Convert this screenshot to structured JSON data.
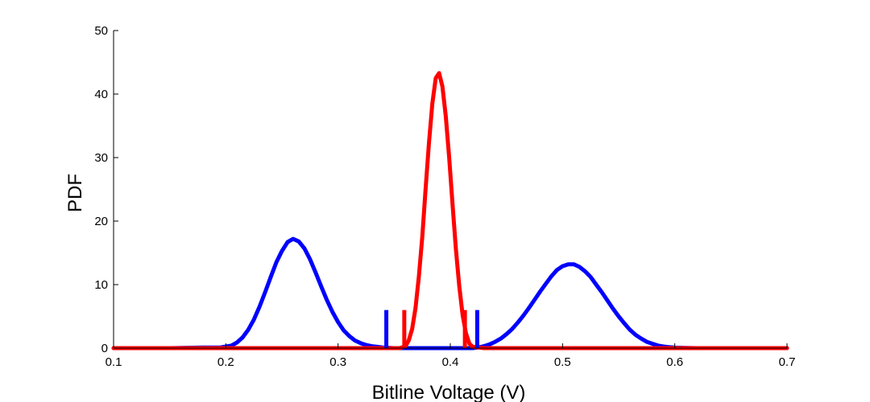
{
  "chart_data": {
    "type": "line",
    "xlabel": "Bitline Voltage (V)",
    "ylabel": "PDF",
    "xlim": [
      0.1,
      0.7
    ],
    "ylim": [
      0,
      50
    ],
    "xticks": [
      0.1,
      0.2,
      0.3,
      0.4,
      0.5,
      0.6,
      0.7
    ],
    "xtick_labels": [
      "0.1",
      "0.2",
      "0.3",
      "0.4",
      "0.5",
      "0.6",
      "0.7"
    ],
    "yticks": [
      0,
      10,
      20,
      30,
      40,
      50
    ],
    "ytick_labels": [
      "0",
      "10",
      "20",
      "30",
      "40",
      "50"
    ],
    "grid": false,
    "series": [
      {
        "color": "#0000ff",
        "x": [
          0.1,
          0.12,
          0.15,
          0.18,
          0.195,
          0.205,
          0.21,
          0.215,
          0.22,
          0.225,
          0.23,
          0.235,
          0.24,
          0.245,
          0.25,
          0.255,
          0.26,
          0.265,
          0.27,
          0.275,
          0.28,
          0.285,
          0.29,
          0.295,
          0.3,
          0.305,
          0.31,
          0.315,
          0.32,
          0.325,
          0.33,
          0.335,
          0.34,
          0.345,
          0.35,
          0.36,
          0.37,
          0.38,
          0.39,
          0.4,
          0.41,
          0.42,
          0.425,
          0.43,
          0.435,
          0.44,
          0.445,
          0.45,
          0.455,
          0.46,
          0.465,
          0.47,
          0.475,
          0.48,
          0.485,
          0.49,
          0.495,
          0.5,
          0.505,
          0.51,
          0.515,
          0.52,
          0.525,
          0.53,
          0.535,
          0.54,
          0.545,
          0.55,
          0.555,
          0.56,
          0.565,
          0.57,
          0.575,
          0.58,
          0.585,
          0.59,
          0.595,
          0.6,
          0.61,
          0.62,
          0.65,
          0.7
        ],
        "y": [
          0.0,
          0.0,
          0.0,
          0.1,
          0.1,
          0.4,
          0.9,
          1.7,
          2.9,
          4.5,
          6.5,
          8.8,
          11.2,
          13.5,
          15.3,
          16.7,
          17.2,
          16.8,
          15.7,
          14.0,
          11.9,
          9.7,
          7.6,
          5.7,
          4.1,
          2.8,
          1.9,
          1.2,
          0.8,
          0.5,
          0.3,
          0.2,
          0.1,
          0.05,
          0.0,
          0.0,
          0.0,
          0.0,
          0.0,
          0.0,
          0.0,
          0.0,
          0.1,
          0.3,
          0.6,
          1.0,
          1.5,
          2.2,
          3.0,
          4.0,
          5.1,
          6.3,
          7.6,
          8.9,
          10.1,
          11.3,
          12.3,
          12.9,
          13.2,
          13.2,
          12.8,
          12.1,
          11.2,
          10.0,
          8.8,
          7.5,
          6.2,
          5.0,
          3.9,
          2.9,
          2.1,
          1.5,
          1.0,
          0.7,
          0.4,
          0.25,
          0.15,
          0.08,
          0.03,
          0.0,
          0.0,
          0.0
        ]
      },
      {
        "color": "#ff0000",
        "x": [
          0.1,
          0.2,
          0.3,
          0.33,
          0.35,
          0.355,
          0.36,
          0.363,
          0.366,
          0.369,
          0.372,
          0.375,
          0.378,
          0.381,
          0.384,
          0.387,
          0.39,
          0.393,
          0.396,
          0.399,
          0.402,
          0.405,
          0.408,
          0.411,
          0.414,
          0.417,
          0.42,
          0.43,
          0.45,
          0.5,
          0.55,
          0.6,
          0.7
        ],
        "y": [
          0.0,
          0.0,
          0.0,
          0.0,
          0.0,
          0.0,
          0.3,
          1.2,
          3.0,
          6.3,
          11.3,
          17.5,
          25.0,
          32.3,
          38.5,
          42.5,
          43.3,
          41.2,
          36.5,
          30.0,
          22.6,
          15.5,
          9.8,
          5.2,
          2.3,
          0.7,
          0.2,
          0.0,
          0.0,
          0.0,
          0.0,
          0.0,
          0.0
        ]
      }
    ],
    "markers": [
      {
        "color": "#0000ff",
        "x": 0.343,
        "y0": 0,
        "y1": 6
      },
      {
        "color": "#ff0000",
        "x": 0.359,
        "y0": 0,
        "y1": 6
      },
      {
        "color": "#ff0000",
        "x": 0.413,
        "y0": 0,
        "y1": 6
      },
      {
        "color": "#0000ff",
        "x": 0.424,
        "y0": 0,
        "y1": 6
      }
    ]
  }
}
